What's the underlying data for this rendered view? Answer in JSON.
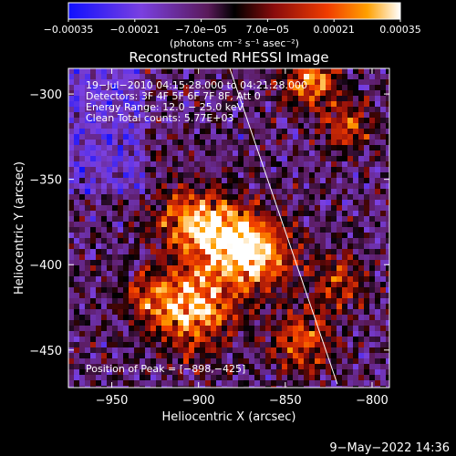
{
  "chart_data": {
    "type": "heatmap",
    "title": "Reconstructed RHESSI Image",
    "xlabel": "Heliocentric X (arcsec)",
    "ylabel": "Heliocentric Y (arcsec)",
    "xlim": [
      -975,
      -790
    ],
    "ylim": [
      -472,
      -285
    ],
    "xticks": [
      -950,
      -900,
      -850,
      -800
    ],
    "xtick_labels": [
      "−950",
      "−900",
      "−850",
      "−800"
    ],
    "yticks": [
      -300,
      -350,
      -400,
      -450
    ],
    "ytick_labels": [
      "−300",
      "−350",
      "−400",
      "−450"
    ],
    "colorbar": {
      "min": -0.00035,
      "max": 0.00035,
      "ticks": [
        -0.00035,
        -0.00021,
        -7e-05,
        7e-05,
        0.00021,
        0.00035
      ],
      "tick_labels": [
        "−0.00035",
        "−0.00021",
        "−7.0e−05",
        "7.0e−05",
        "0.00021",
        "0.00035"
      ],
      "unit_label": "(photons cm⁻² s⁻¹ asec⁻²)"
    },
    "annotations": [
      "19−Jul−2010 04:15:28.000 to 04:21:28.000",
      "Detectors: 3F 4F 5F 6F 7F 8F, Att 0",
      "Energy Range: 12.0 − 25.0 keV",
      "Clean    Total counts: 5.77E+03",
      "Position of Peak = [−898,−425]"
    ],
    "limb_line": {
      "x": [
        -882,
        -820
      ],
      "y": [
        -285,
        -470
      ]
    },
    "peak": {
      "x": -898,
      "y": -425
    },
    "grid": false,
    "legend": "none"
  },
  "footer": {
    "date": "9−May−2022 14:36"
  },
  "colors": {
    "background": "#000000",
    "axes": "#ffffff",
    "text": "#ffffff"
  }
}
